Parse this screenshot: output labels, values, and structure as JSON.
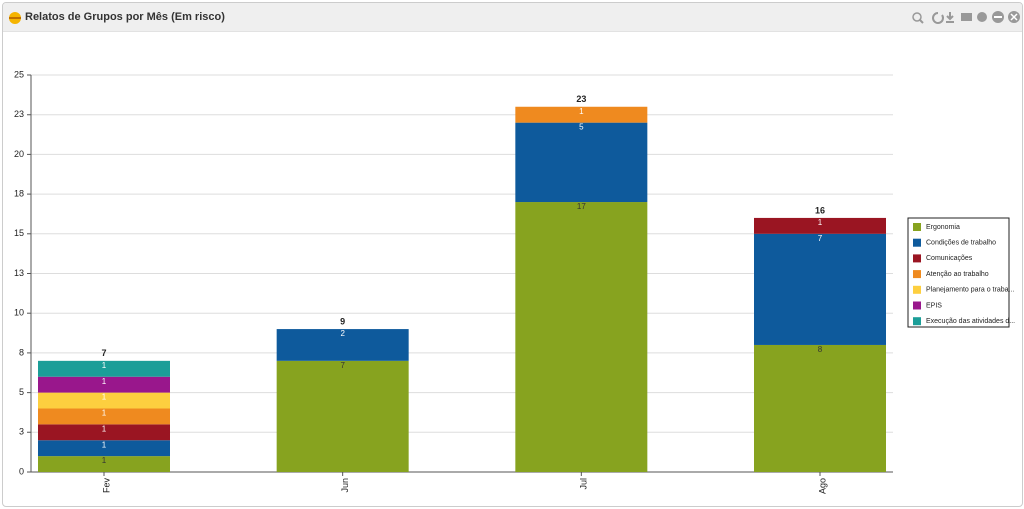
{
  "chart_data": {
    "type": "stacked-bar",
    "title": "Relatos de Grupos por Mês (Em risco)",
    "categories": [
      "Fev",
      "Jun",
      "Jul",
      "Ago"
    ],
    "series": [
      {
        "name": "Ergonomia",
        "color": "#87a31f",
        "values": [
          1,
          7,
          17,
          8
        ]
      },
      {
        "name": "Condições de trabalho",
        "color": "#0e5a9c",
        "values": [
          1,
          2,
          5,
          7
        ]
      },
      {
        "name": "Comunicações",
        "color": "#9a1522",
        "values": [
          1,
          null,
          null,
          1
        ]
      },
      {
        "name": "Atenção ao trabalho",
        "color": "#ef8a1f",
        "values": [
          1,
          null,
          1,
          null
        ]
      },
      {
        "name": "Planejamento para o traba...",
        "color": "#fdcf3f",
        "values": [
          1,
          null,
          null,
          null
        ]
      },
      {
        "name": "EPIS",
        "color": "#99178c",
        "values": [
          1,
          null,
          null,
          null
        ]
      },
      {
        "name": "Execução das atividades d...",
        "color": "#1b9e98",
        "values": [
          1,
          null,
          null,
          null
        ]
      }
    ],
    "totals": [
      7,
      9,
      23,
      16
    ],
    "ylim": [
      0,
      25
    ],
    "yticks": [
      0,
      {
        "value": 2.5,
        "label": "3"
      },
      5,
      {
        "value": 7.5,
        "label": "8"
      },
      10,
      {
        "value": 12.5,
        "label": "13"
      },
      15,
      {
        "value": 17.5,
        "label": "18"
      },
      20,
      {
        "value": 22.5,
        "label": "23"
      },
      25
    ],
    "grid": true,
    "legend": "right"
  }
}
